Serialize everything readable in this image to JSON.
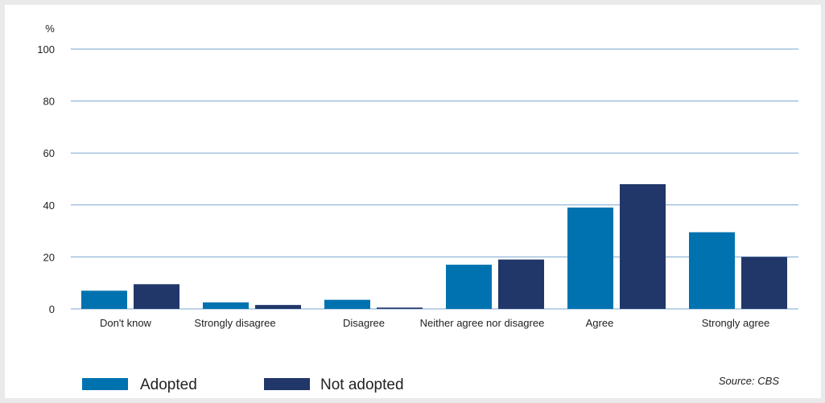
{
  "chart_data": {
    "type": "bar",
    "ylabel": "%",
    "ylim": [
      0,
      100
    ],
    "yticks": [
      0,
      20,
      40,
      60,
      80,
      100
    ],
    "grid": true,
    "legend_position": "bottom-left",
    "categories": [
      "Don't know",
      "Strongly disagree",
      "Disagree",
      "Neither agree nor disagree",
      "Agree",
      "Strongly agree"
    ],
    "series": [
      {
        "name": "Adopted",
        "color": "#0072b0",
        "values": [
          7,
          2.5,
          3.5,
          17,
          39,
          29.5
        ]
      },
      {
        "name": "Not adopted",
        "color": "#213669",
        "values": [
          9.5,
          1.5,
          0.5,
          19,
          48,
          20
        ]
      }
    ],
    "source": "Source: CBS"
  },
  "colors": {
    "grid": "#7aa6cf",
    "axis": "#7aa6cf",
    "text": "#222222",
    "background": "#ffffff"
  }
}
